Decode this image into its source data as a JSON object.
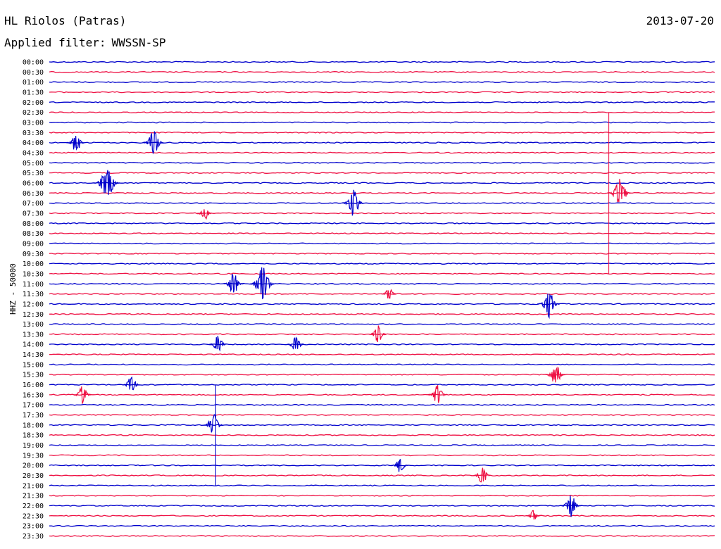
{
  "header": {
    "station": "HL Riolos (Patras)",
    "date": "2013-07-20",
    "filter_label": "Applied filter:",
    "filter_value": "WWSSN-SP"
  },
  "chart_data": {
    "type": "line",
    "title": "HL Riolos (Patras)",
    "ylabel": "HHZ - 50000",
    "xlabel": "",
    "grid": false,
    "colors": [
      "#0000cc",
      "#ee1144"
    ],
    "row_labels": [
      "00:00",
      "00:30",
      "01:00",
      "01:30",
      "02:00",
      "02:30",
      "03:00",
      "03:30",
      "04:00",
      "04:30",
      "05:00",
      "05:30",
      "06:00",
      "06:30",
      "07:00",
      "07:30",
      "08:00",
      "08:30",
      "09:00",
      "09:30",
      "10:00",
      "10:30",
      "11:00",
      "11:30",
      "12:00",
      "12:30",
      "13:00",
      "13:30",
      "14:00",
      "14:30",
      "15:00",
      "15:30",
      "16:00",
      "16:30",
      "17:00",
      "17:30",
      "18:00",
      "18:30",
      "19:00",
      "19:30",
      "20:00",
      "20:30",
      "21:00",
      "21:30",
      "22:00",
      "22:30",
      "23:00",
      "23:30"
    ],
    "events": [
      {
        "row": 8,
        "x_min": 1.2,
        "amp": 0.9
      },
      {
        "row": 8,
        "x_min": 4.7,
        "amp": 1.1
      },
      {
        "row": 12,
        "x_min": 2.6,
        "amp": 1.5
      },
      {
        "row": 13,
        "x_min": 25.7,
        "amp": 1.3
      },
      {
        "row": 14,
        "x_min": 13.7,
        "amp": 1.2
      },
      {
        "row": 15,
        "x_min": 7.0,
        "amp": 0.6
      },
      {
        "row": 22,
        "x_min": 8.3,
        "amp": 1.0
      },
      {
        "row": 22,
        "x_min": 9.6,
        "amp": 1.5
      },
      {
        "row": 23,
        "x_min": 15.3,
        "amp": 0.6
      },
      {
        "row": 24,
        "x_min": 22.5,
        "amp": 1.2
      },
      {
        "row": 27,
        "x_min": 14.8,
        "amp": 0.8
      },
      {
        "row": 28,
        "x_min": 7.6,
        "amp": 0.8
      },
      {
        "row": 28,
        "x_min": 11.1,
        "amp": 0.8
      },
      {
        "row": 31,
        "x_min": 22.8,
        "amp": 1.0
      },
      {
        "row": 32,
        "x_min": 3.7,
        "amp": 0.8
      },
      {
        "row": 33,
        "x_min": 1.5,
        "amp": 0.8
      },
      {
        "row": 33,
        "x_min": 17.5,
        "amp": 0.9
      },
      {
        "row": 36,
        "x_min": 7.4,
        "amp": 1.0
      },
      {
        "row": 40,
        "x_min": 15.8,
        "amp": 0.7
      },
      {
        "row": 41,
        "x_min": 19.5,
        "amp": 0.8
      },
      {
        "row": 44,
        "x_min": 23.5,
        "amp": 1.0
      },
      {
        "row": 45,
        "x_min": 21.8,
        "amp": 0.5
      }
    ],
    "long_spikes": [
      {
        "row_start": 5,
        "row_end": 21,
        "x_min": 25.2
      },
      {
        "row_start": 32,
        "row_end": 42,
        "x_min": 7.5
      }
    ]
  }
}
